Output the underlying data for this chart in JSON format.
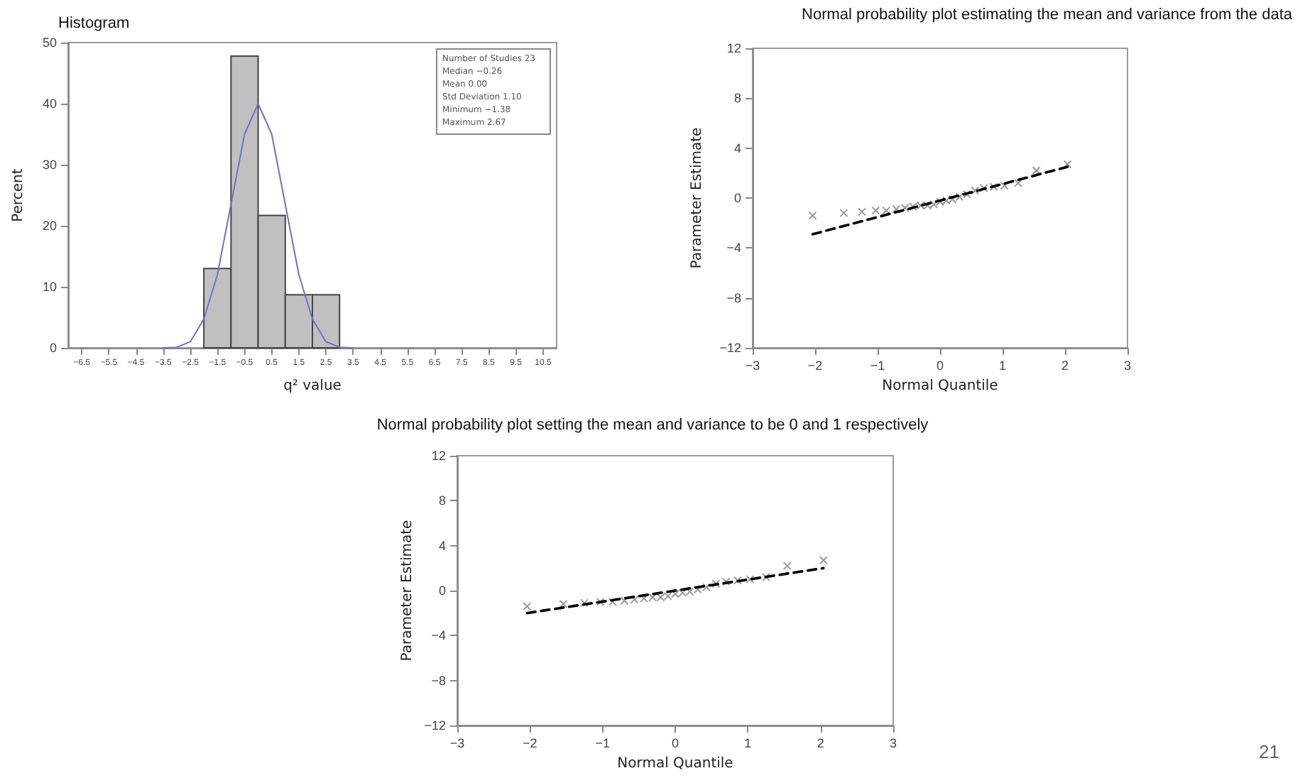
{
  "chart_data": [
    {
      "type": "histogram",
      "title": "Histogram",
      "xlabel": "q² value",
      "ylabel": "Percent",
      "bins": [
        -2,
        -1,
        0,
        1,
        2,
        3
      ],
      "values": [
        13.0,
        47.8,
        21.7,
        8.7,
        8.7
      ],
      "color": "#c0c0c0",
      "series": [
        {
          "type": "line",
          "color": "#6f6fd0",
          "x": [
            -3.5,
            -3,
            -2.5,
            -2,
            -1.5,
            -1,
            -0.5,
            0,
            0.5,
            1,
            1.5,
            2,
            2.5,
            3,
            3.5
          ],
          "values": [
            0,
            0.1,
            1,
            4.7,
            12,
            23.5,
            35,
            40,
            35,
            23.5,
            12,
            4.7,
            1,
            0.1,
            0
          ],
          "marker": "none"
        }
      ],
      "xlim": [
        -7,
        11
      ],
      "xticks": [
        -6.5,
        -5.5,
        -4.5,
        -3.5,
        -2.5,
        -1.5,
        -0.5,
        0.5,
        1.5,
        2.5,
        3.5,
        4.5,
        5.5,
        6.5,
        7.5,
        8.5,
        9.5,
        10.5
      ],
      "ylim": [
        0,
        50
      ],
      "yticks": [
        0,
        10,
        20,
        30,
        40,
        50
      ],
      "annotations": [
        "Number of Studies 23",
        "Median −0.26",
        "Mean 0.00",
        "Std Deviation 1.10",
        "Minimum −1.38",
        "Maximum 2.67"
      ]
    },
    {
      "type": "scatter",
      "title": "Normal probability plot estimating the mean and variance from the data",
      "xlabel": "Normal Quantile",
      "ylabel": "Parameter Estimate",
      "marker": "cross",
      "series": [
        {
          "type": "scatter",
          "color": "#808080",
          "x": [
            -2.04,
            -1.54,
            -1.25,
            -1.03,
            -0.86,
            -0.7,
            -0.56,
            -0.43,
            -0.31,
            -0.2,
            -0.1,
            0,
            0.1,
            0.2,
            0.31,
            0.43,
            0.56,
            0.7,
            0.86,
            1.03,
            1.25,
            1.54,
            2.04
          ],
          "values": [
            -1.4,
            -1.2,
            -1.1,
            -1.0,
            -1.0,
            -0.9,
            -0.8,
            -0.7,
            -0.6,
            -0.6,
            -0.5,
            -0.3,
            -0.2,
            -0.1,
            0.1,
            0.3,
            0.6,
            0.8,
            0.9,
            1.0,
            1.2,
            2.2,
            2.7
          ]
        },
        {
          "type": "line",
          "color": "#000000",
          "x": [
            -2.04,
            2.04
          ],
          "values": [
            -2.9,
            2.5
          ],
          "line_style": "dashed",
          "marker": "none"
        }
      ],
      "xlim": [
        -3,
        3
      ],
      "xticks": [
        -3,
        -2,
        -1,
        0,
        1,
        2,
        3
      ],
      "ylim": [
        -12,
        12
      ],
      "yticks": [
        -12,
        -8,
        -4,
        0,
        4,
        8,
        12
      ]
    },
    {
      "type": "scatter",
      "title": "Normal probability plot setting the mean and variance to be 0 and 1 respectively",
      "xlabel": "Normal Quantile",
      "ylabel": "Parameter Estimate",
      "marker": "cross",
      "series": [
        {
          "type": "scatter",
          "color": "#808080",
          "x": [
            -2.04,
            -1.54,
            -1.25,
            -1.03,
            -0.86,
            -0.7,
            -0.56,
            -0.43,
            -0.31,
            -0.2,
            -0.1,
            0,
            0.1,
            0.2,
            0.31,
            0.43,
            0.56,
            0.7,
            0.86,
            1.03,
            1.25,
            1.54,
            2.04
          ],
          "values": [
            -1.4,
            -1.2,
            -1.1,
            -1.0,
            -1.0,
            -0.9,
            -0.8,
            -0.7,
            -0.6,
            -0.6,
            -0.5,
            -0.3,
            -0.2,
            -0.1,
            0.1,
            0.3,
            0.6,
            0.8,
            0.9,
            1.0,
            1.2,
            2.2,
            2.7
          ]
        },
        {
          "type": "line",
          "color": "#000000",
          "x": [
            -2.04,
            2.04
          ],
          "values": [
            -2.0,
            2.0
          ],
          "line_style": "dashed",
          "marker": "none"
        }
      ],
      "xlim": [
        -3,
        3
      ],
      "xticks": [
        -3,
        -2,
        -1,
        0,
        1,
        2,
        3
      ],
      "ylim": [
        -12,
        12
      ],
      "yticks": [
        -12,
        -8,
        -4,
        0,
        4,
        8,
        12
      ],
      "annotations": [
        "21"
      ]
    }
  ]
}
